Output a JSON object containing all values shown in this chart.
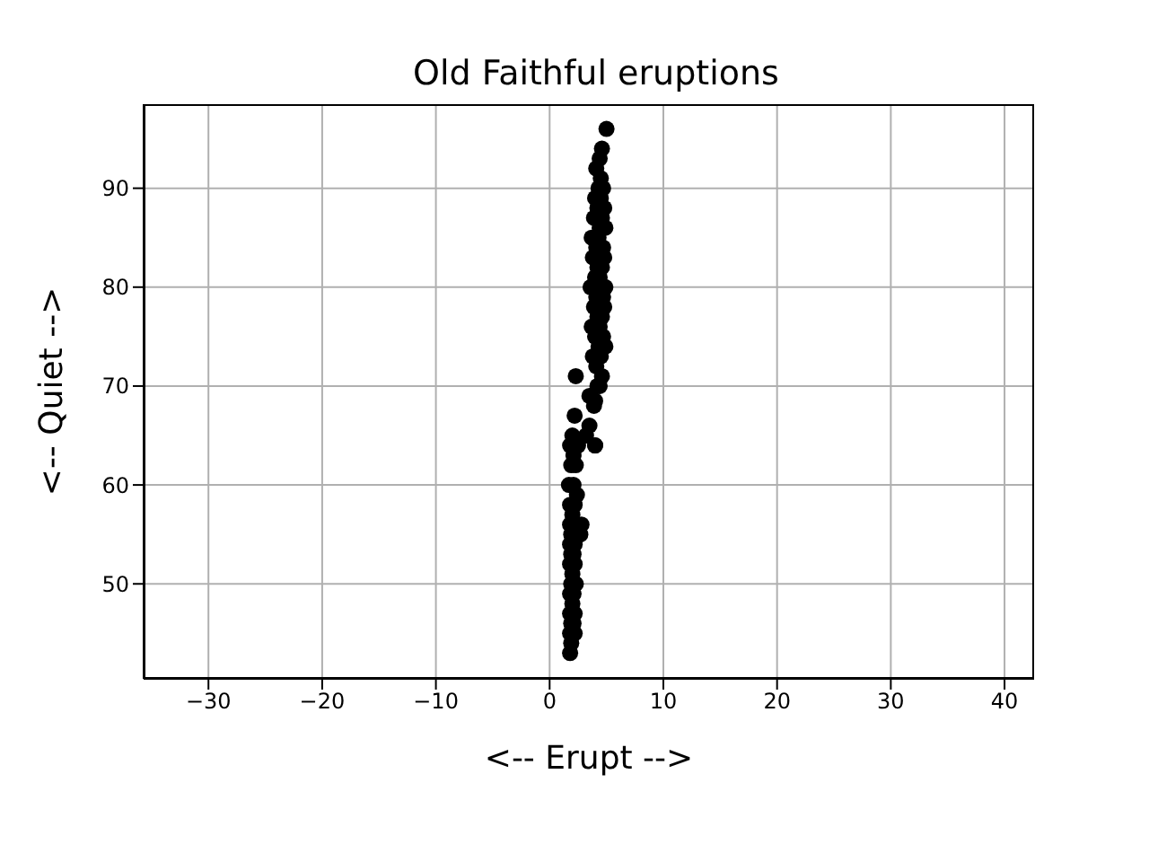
{
  "chart_data": {
    "type": "scatter",
    "title": "Old Faithful eruptions",
    "xlabel": "<-- Erupt -->",
    "ylabel": "<-- Quiet -->",
    "x": [
      5.0,
      4.6,
      4.4,
      4.1,
      4.5,
      4.3,
      4.7,
      4.0,
      4.5,
      4.8,
      4.2,
      3.9,
      4.6,
      4.4,
      4.9,
      3.7,
      4.3,
      4.7,
      4.1,
      3.8,
      4.8,
      4.2,
      4.6,
      4.0,
      4.4,
      4.9,
      3.6,
      4.7,
      4.1,
      3.9,
      4.8,
      4.2,
      4.6,
      3.7,
      4.4,
      4.0,
      4.7,
      4.3,
      4.9,
      3.8,
      4.5,
      4.1,
      4.6,
      4.2,
      3.5,
      4.4,
      3.9,
      4.0,
      2.3,
      3.5,
      3.2,
      4.0,
      2.2,
      2.0,
      1.8,
      2.5,
      2.1,
      4.0,
      1.9,
      2.3,
      1.7,
      2.1,
      2.4,
      1.8,
      2.2,
      2.0,
      1.8,
      1.9,
      1.8,
      2.2,
      2.8,
      1.9,
      2.1,
      2.7,
      1.8,
      2.2,
      2.0,
      1.9,
      2.3,
      1.8,
      2.1,
      2.0,
      1.8,
      2.2,
      1.9,
      2.1,
      1.8,
      2.2,
      1.9,
      1.8
    ],
    "values": [
      96,
      94,
      93,
      92,
      91,
      90,
      90,
      89,
      89,
      88,
      88,
      87,
      87,
      86,
      86,
      85,
      85,
      84,
      84,
      83,
      83,
      82,
      82,
      81,
      81,
      80,
      80,
      79,
      79,
      78,
      78,
      77,
      77,
      76,
      76,
      75,
      75,
      74,
      74,
      73,
      73,
      72,
      71,
      70,
      69,
      70,
      68,
      68.5,
      71,
      66,
      65,
      64,
      67,
      65,
      64,
      64,
      63,
      64,
      62,
      62,
      60,
      60,
      59,
      58,
      58,
      57,
      56,
      55,
      54,
      54,
      56,
      53,
      53,
      55,
      52,
      52,
      51,
      50,
      50,
      49,
      49,
      48,
      47,
      47,
      46,
      46,
      45,
      45,
      44,
      43
    ],
    "color": "#000000",
    "marker": "circle",
    "xlim": [
      -35.7,
      42.6
    ],
    "xticks": [
      {
        "value": -30,
        "label": "−30"
      },
      {
        "value": -20,
        "label": "−20"
      },
      {
        "value": -10,
        "label": "−10"
      },
      0,
      10,
      20,
      30,
      40
    ],
    "ylim": [
      40.4,
      98.5
    ],
    "yticks": [
      50,
      60,
      70,
      80,
      90
    ],
    "grid": true
  }
}
